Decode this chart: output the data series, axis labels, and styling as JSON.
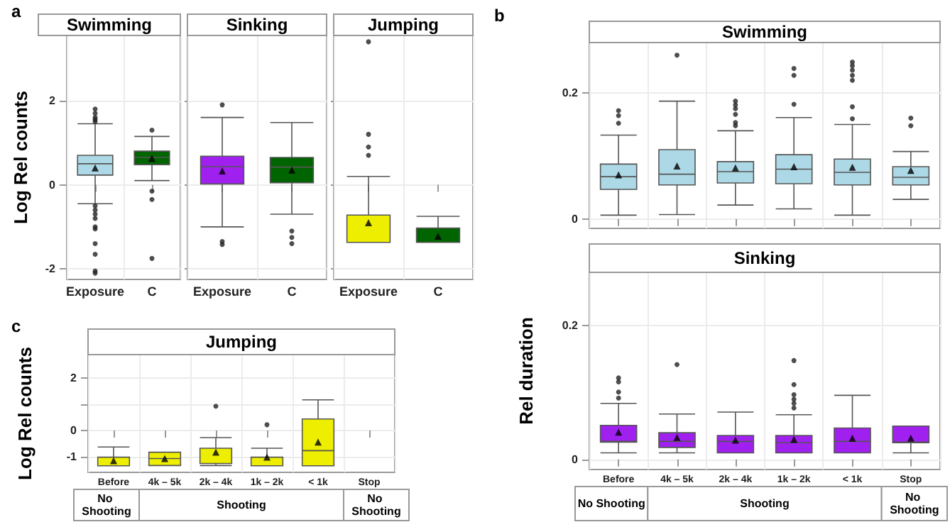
{
  "chart_data": [
    {
      "type": "box",
      "title": "Swimming",
      "ylabel": "Log Rel counts",
      "annotations": [
        "a"
      ],
      "categories": [
        "Exposure",
        "C"
      ],
      "colors": [
        "#add8e6",
        "#006400"
      ],
      "boxes": [
        {
          "low": -0.45,
          "q1": 0.23,
          "median": 0.5,
          "q3": 0.7,
          "high": 1.45,
          "mean": 0.4,
          "outliers": [
            1.5,
            1.55,
            1.6,
            1.7,
            1.8,
            -0.5,
            -0.6,
            -0.7,
            -0.8,
            -1.0,
            -1.05,
            -1.4,
            -1.65,
            -2.05,
            -2.1
          ]
        },
        {
          "low": 0.1,
          "q1": 0.48,
          "median": 0.65,
          "q3": 0.8,
          "high": 1.15,
          "mean": 0.63,
          "outliers": [
            1.3,
            -0.15,
            -0.35,
            -1.75
          ]
        }
      ],
      "ylim": [
        -2.25,
        3.55
      ],
      "yticks": [
        -2,
        0,
        2
      ],
      "grid": true,
      "marker": "triangle"
    },
    {
      "type": "box",
      "title": "Sinking",
      "categories": [
        "Exposure",
        "C"
      ],
      "colors": [
        "#a020f0",
        "#006400"
      ],
      "boxes": [
        {
          "low": -1.0,
          "q1": 0.02,
          "median": 0.43,
          "q3": 0.68,
          "high": 1.6,
          "mean": 0.33,
          "outliers": [
            1.9,
            -1.35,
            -1.42
          ]
        },
        {
          "low": -0.7,
          "q1": 0.05,
          "median": 0.42,
          "q3": 0.65,
          "high": 1.48,
          "mean": 0.35,
          "outliers": [
            -1.1,
            -1.25,
            -1.4
          ]
        }
      ],
      "ylim": [
        -2.25,
        3.55
      ],
      "yticks": [
        -2,
        0,
        2
      ],
      "grid": true,
      "marker": "triangle",
      "tick_labels": "x"
    },
    {
      "type": "box",
      "title": "Jumping",
      "categories": [
        "Exposure",
        "C"
      ],
      "colors": [
        "#eeee00",
        "#006400"
      ],
      "boxes": [
        {
          "low": -1.37,
          "q1": -1.37,
          "median": -1.37,
          "q3": -0.72,
          "high": 0.2,
          "mean": -0.9,
          "outliers": [
            0.7,
            0.9,
            1.2,
            3.4
          ]
        },
        {
          "low": -1.37,
          "q1": -1.37,
          "median": -1.37,
          "q3": -1.03,
          "high": -0.75,
          "mean": -1.22
        }
      ],
      "ylim": [
        -2.25,
        3.55
      ],
      "yticks": [
        -2,
        0,
        2
      ],
      "grid": true,
      "marker": "triangle",
      "tick_labels": "x"
    },
    {
      "type": "box",
      "title": "Swimming",
      "annotations": [
        "b"
      ],
      "categories": [
        "Before",
        "4k – 5k",
        "2k – 4k",
        "1k – 2k",
        "< 1k",
        "Stop"
      ],
      "colors": [
        "#add8e6",
        "#add8e6",
        "#add8e6",
        "#add8e6",
        "#add8e6",
        "#add8e6"
      ],
      "boxes": [
        {
          "low": 0.006,
          "q1": 0.047,
          "median": 0.067,
          "q3": 0.087,
          "high": 0.133,
          "mean": 0.07,
          "outliers": [
            0.152,
            0.164,
            0.172
          ]
        },
        {
          "low": 0.007,
          "q1": 0.054,
          "median": 0.071,
          "q3": 0.11,
          "high": 0.187,
          "mean": 0.084,
          "outliers": [
            0.26
          ]
        },
        {
          "low": 0.022,
          "q1": 0.057,
          "median": 0.075,
          "q3": 0.091,
          "high": 0.14,
          "mean": 0.081,
          "outliers": [
            0.148,
            0.153,
            0.166,
            0.175,
            0.181,
            0.187
          ]
        },
        {
          "low": 0.016,
          "q1": 0.056,
          "median": 0.079,
          "q3": 0.102,
          "high": 0.161,
          "mean": 0.083,
          "outliers": [
            0.182,
            0.228,
            0.239
          ]
        },
        {
          "low": 0.006,
          "q1": 0.054,
          "median": 0.074,
          "q3": 0.095,
          "high": 0.15,
          "mean": 0.082,
          "outliers": [
            0.159,
            0.178,
            0.22,
            0.228,
            0.236,
            0.243,
            0.249
          ]
        },
        {
          "low": 0.031,
          "q1": 0.054,
          "median": 0.066,
          "q3": 0.083,
          "high": 0.107,
          "mean": 0.077,
          "outliers": [
            0.148,
            0.16
          ]
        }
      ],
      "ylim": [
        -0.015,
        0.28
      ],
      "yticks": [
        0,
        0.2
      ],
      "grid": true,
      "marker": "triangle",
      "tick_labels": "y"
    },
    {
      "type": "box",
      "title": "Sinking",
      "ylabel": "Rel duration",
      "annotations": [
        "No Shooting",
        "Shooting",
        "No Shooting"
      ],
      "categories": [
        "Before",
        "4k – 5k",
        "2k – 4k",
        "1k – 2k",
        "< 1k",
        "Stop"
      ],
      "colors": [
        "#a020f0",
        "#a020f0",
        "#a020f0",
        "#a020f0",
        "#a020f0",
        "#a020f0"
      ],
      "boxes": [
        {
          "low": 0.01,
          "q1": 0.026,
          "median": 0.027,
          "q3": 0.051,
          "high": 0.084,
          "mean": 0.041,
          "outliers": [
            0.092,
            0.101,
            0.116,
            0.122
          ]
        },
        {
          "low": 0.01,
          "q1": 0.018,
          "median": 0.027,
          "q3": 0.04,
          "high": 0.068,
          "mean": 0.033,
          "outliers": [
            0.142
          ]
        },
        {
          "low": 0.01,
          "q1": 0.01,
          "median": 0.027,
          "q3": 0.036,
          "high": 0.071,
          "mean": 0.029
        },
        {
          "low": 0.01,
          "q1": 0.01,
          "median": 0.025,
          "q3": 0.036,
          "high": 0.067,
          "mean": 0.03,
          "outliers": [
            0.077,
            0.084,
            0.09,
            0.097,
            0.112,
            0.148
          ]
        },
        {
          "low": 0.01,
          "q1": 0.01,
          "median": 0.027,
          "q3": 0.047,
          "high": 0.096,
          "mean": 0.032
        },
        {
          "low": 0.01,
          "q1": 0.025,
          "median": 0.026,
          "q3": 0.05,
          "high": 0.05,
          "mean": 0.032
        }
      ],
      "ylim": [
        -0.015,
        0.28
      ],
      "yticks": [
        0,
        0.2
      ],
      "grid": true,
      "marker": "triangle"
    },
    {
      "type": "box",
      "title": "Jumping",
      "ylabel": "Log Rel counts",
      "annotations": [
        "c",
        "No Shooting",
        "Shooting",
        "No Shooting"
      ],
      "categories": [
        "Before",
        "4k – 5k",
        "2k – 4k",
        "1k – 2k",
        "< 1k",
        "Stop"
      ],
      "colors": [
        "#eeee00",
        "#eeee00",
        "#eeee00",
        "#eeee00",
        "#eeee00",
        null
      ],
      "boxes": [
        {
          "low": -1.35,
          "q1": -1.35,
          "median": -1.35,
          "q3": -1.02,
          "high": -0.63,
          "mean": -1.15
        },
        {
          "low": -1.34,
          "q1": -1.34,
          "median": -1.07,
          "q3": -0.83,
          "high": -0.83,
          "mean": -1.07
        },
        {
          "low": -1.34,
          "q1": -1.26,
          "median": -1.26,
          "q3": -0.68,
          "high": -0.27,
          "mean": -0.83,
          "outliers": [
            0.93
          ]
        },
        {
          "low": -1.35,
          "q1": -1.35,
          "median": -1.35,
          "q3": -1.02,
          "high": -0.68,
          "mean": -1.02,
          "outliers": [
            0.22
          ]
        },
        {
          "low": -1.35,
          "q1": -1.35,
          "median": -0.77,
          "q3": 0.44,
          "high": 1.17,
          "mean": -0.44
        },
        null
      ],
      "ylim": [
        -1.6,
        2.9
      ],
      "yticks": [
        -1,
        0,
        {
          "value": 1,
          "label": null
        },
        2
      ],
      "grid": true,
      "marker": "triangle"
    }
  ]
}
